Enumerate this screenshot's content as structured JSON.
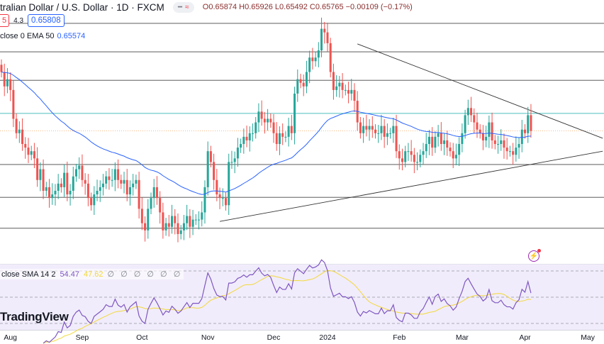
{
  "header": {
    "title": "tralian Dollar / U.S. Dollar · 1D · FXCM",
    "ohlc": "O0.65874 H0.65926 L0.65492 C0.65765 −0.00109 (−0.17%)"
  },
  "toolbar": {
    "sell_partial": "5",
    "spread": "4.3",
    "buy_price": "0.65808"
  },
  "indicators": {
    "ema_label": "close 0 EMA 50",
    "ema_value": "0.65574",
    "rsi_label": "close SMA 14 2",
    "rsi_value": "54.47",
    "rsi_sma_value": "47.62",
    "rsi_extra": "∅ ∅ ∅ ∅ ∅ ∅"
  },
  "logo": "TradingView",
  "colors": {
    "up": "#26a69a",
    "down": "#ef5350",
    "ema": "#2962ff",
    "rsi": "#7e57c2",
    "rsi_sma": "#f2d93a",
    "level_teal": "#4dbfbf",
    "price_line": "#f7a35c"
  },
  "icons": {
    "alert": "lightning-icon"
  },
  "chart_data": {
    "type": "candlestick",
    "symbol": "AUDUSD",
    "interval": "1D",
    "closes": [
      0.674,
      0.67,
      0.672,
      0.669,
      0.661,
      0.657,
      0.658,
      0.654,
      0.653,
      0.651,
      0.652,
      0.65,
      0.644,
      0.647,
      0.641,
      0.642,
      0.639,
      0.64,
      0.641,
      0.643,
      0.642,
      0.646,
      0.64,
      0.641,
      0.645,
      0.647,
      0.648,
      0.644,
      0.643,
      0.639,
      0.637,
      0.64,
      0.641,
      0.642,
      0.643,
      0.645,
      0.644,
      0.644,
      0.647,
      0.644,
      0.643,
      0.644,
      0.64,
      0.642,
      0.643,
      0.644,
      0.636,
      0.632,
      0.63,
      0.636,
      0.639,
      0.642,
      0.639,
      0.635,
      0.63,
      0.632,
      0.631,
      0.634,
      0.632,
      0.629,
      0.63,
      0.632,
      0.634,
      0.631,
      0.633,
      0.633,
      0.633,
      0.635,
      0.642,
      0.652,
      0.649,
      0.644,
      0.64,
      0.639,
      0.639,
      0.637,
      0.649,
      0.649,
      0.65,
      0.653,
      0.654,
      0.656,
      0.655,
      0.657,
      0.657,
      0.66,
      0.663,
      0.661,
      0.66,
      0.661,
      0.66,
      0.657,
      0.654,
      0.657,
      0.656,
      0.656,
      0.659,
      0.657,
      0.668,
      0.672,
      0.671,
      0.67,
      0.674,
      0.678,
      0.677,
      0.678,
      0.68,
      0.686,
      0.685,
      0.682,
      0.674,
      0.669,
      0.67,
      0.671,
      0.669,
      0.669,
      0.668,
      0.669,
      0.666,
      0.66,
      0.657,
      0.659,
      0.658,
      0.659,
      0.658,
      0.657,
      0.657,
      0.659,
      0.656,
      0.657,
      0.657,
      0.659,
      0.652,
      0.65,
      0.649,
      0.652,
      0.652,
      0.651,
      0.649,
      0.649,
      0.651,
      0.652,
      0.654,
      0.656,
      0.653,
      0.656,
      0.657,
      0.654,
      0.655,
      0.653,
      0.652,
      0.65,
      0.651,
      0.654,
      0.657,
      0.662,
      0.664,
      0.662,
      0.66,
      0.658,
      0.657,
      0.655,
      0.656,
      0.66,
      0.655,
      0.654,
      0.654,
      0.655,
      0.653,
      0.652,
      0.652,
      0.651,
      0.653,
      0.654,
      0.658,
      0.657,
      0.662,
      0.65765
    ],
    "last_close": 0.65765,
    "ylim": [
      0.626,
      0.689
    ],
    "horizontal_levels": [
      0.6875,
      0.6796,
      0.6717,
      0.6483,
      0.6392,
      0.6306
    ],
    "teal_level": 0.6625,
    "trendlines": [
      {
        "from": [
          119,
          0.6818
        ],
        "to": [
          201,
          0.6556
        ]
      },
      {
        "from": [
          73,
          0.6325
        ],
        "to": [
          201,
          0.652
        ]
      }
    ],
    "ema_period": 50,
    "rsi": {
      "period": 14,
      "sma": 14,
      "levels": [
        70,
        50,
        30
      ]
    },
    "time_labels": [
      {
        "label": "Aug",
        "index": 3
      },
      {
        "label": "Sep",
        "index": 27
      },
      {
        "label": "Oct",
        "index": 47
      },
      {
        "label": "Nov",
        "index": 69
      },
      {
        "label": "Dec",
        "index": 91
      },
      {
        "label": "2024",
        "index": 109
      },
      {
        "label": "Feb",
        "index": 133
      },
      {
        "label": "Mar",
        "index": 154
      },
      {
        "label": "Apr",
        "index": 175
      },
      {
        "label": "May",
        "index": 196
      }
    ]
  }
}
